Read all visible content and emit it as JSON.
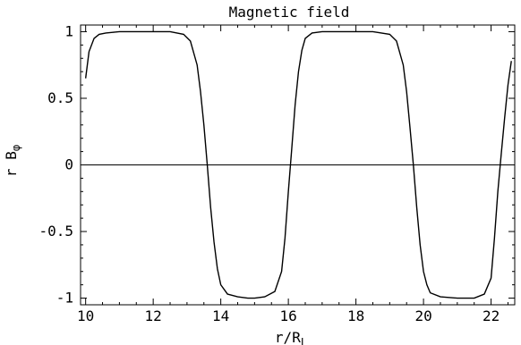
{
  "chart_data": {
    "type": "line",
    "title": "Magnetic field",
    "xlabel": "r/R",
    "xlabel_subscript": "L",
    "ylabel": "r B",
    "ylabel_subscript": "φ",
    "xlim": [
      9.85,
      22.7
    ],
    "ylim": [
      -1.05,
      1.05
    ],
    "xticks": [
      10,
      12,
      14,
      16,
      18,
      20,
      22
    ],
    "xtick_labels": [
      "10",
      "12",
      "14",
      "16",
      "18",
      "20",
      "22"
    ],
    "yticks": [
      -1,
      -0.5,
      0,
      0.5,
      1
    ],
    "ytick_labels": [
      "-1",
      "-0.5",
      "0",
      "0.5",
      "1"
    ],
    "reference_line_y": 0,
    "grid": false,
    "series": [
      {
        "x": [
          10.0,
          10.1,
          10.25,
          10.4,
          10.6,
          10.8,
          11.0,
          11.5,
          12.0,
          12.5,
          12.9,
          13.1,
          13.3,
          13.4,
          13.5,
          13.6,
          13.7,
          13.8,
          13.9,
          14.0,
          14.2,
          14.5,
          14.8,
          15.0,
          15.3,
          15.6,
          15.8,
          15.9,
          16.0,
          16.1,
          16.2,
          16.3,
          16.4,
          16.5,
          16.7,
          17.0,
          17.5,
          18.0,
          18.5,
          19.0,
          19.2,
          19.4,
          19.5,
          19.6,
          19.7,
          19.8,
          19.9,
          20.0,
          20.1,
          20.2,
          20.5,
          21.0,
          21.5,
          21.8,
          22.0,
          22.1,
          22.2,
          22.3,
          22.4,
          22.5,
          22.6
        ],
        "y": [
          0.65,
          0.85,
          0.95,
          0.98,
          0.99,
          0.995,
          1.0,
          1.0,
          1.0,
          1.0,
          0.98,
          0.93,
          0.75,
          0.55,
          0.3,
          0.0,
          -0.32,
          -0.58,
          -0.78,
          -0.9,
          -0.97,
          -0.99,
          -1.0,
          -1.0,
          -0.99,
          -0.95,
          -0.8,
          -0.55,
          -0.2,
          0.12,
          0.45,
          0.7,
          0.86,
          0.95,
          0.99,
          1.0,
          1.0,
          1.0,
          1.0,
          0.98,
          0.93,
          0.75,
          0.55,
          0.28,
          0.0,
          -0.32,
          -0.6,
          -0.8,
          -0.9,
          -0.96,
          -0.99,
          -1.0,
          -1.0,
          -0.97,
          -0.85,
          -0.55,
          -0.2,
          0.08,
          0.35,
          0.6,
          0.78
        ]
      }
    ]
  }
}
